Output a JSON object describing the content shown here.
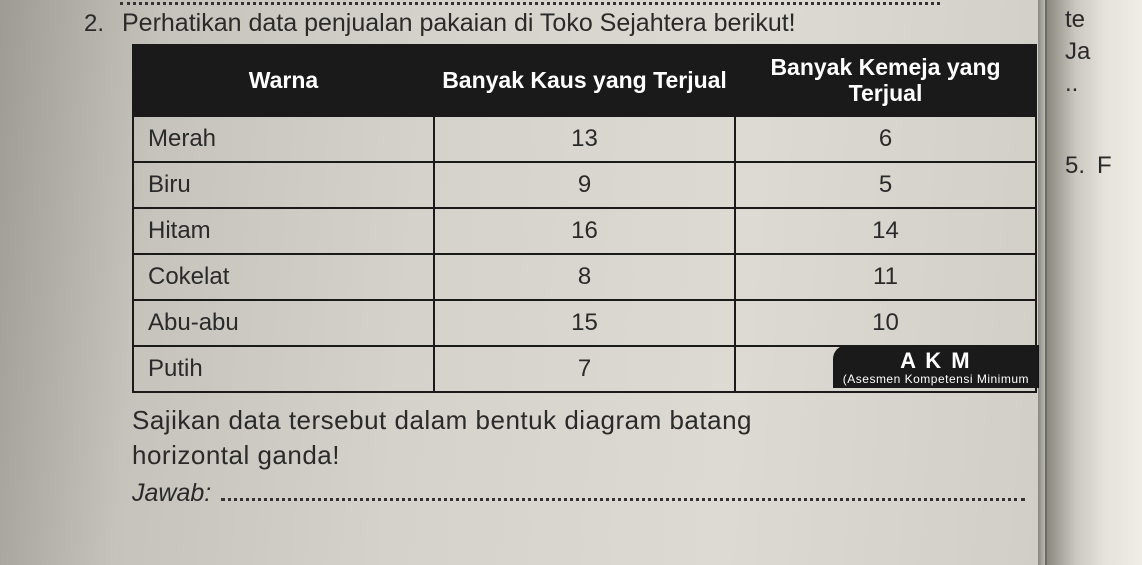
{
  "question": {
    "number": "2.",
    "prompt": "Perhatikan data penjualan pakaian di Toko Sejahtera berikut!",
    "instruction_line1": "Sajikan data tersebut dalam bentuk diagram batang",
    "instruction_line2": "horizontal ganda!",
    "answer_label": "Jawab:"
  },
  "table": {
    "type": "table",
    "columns": [
      "Warna",
      "Banyak Kaus yang Terjual",
      "Banyak Kemeja yang Terjual"
    ],
    "rows": [
      {
        "label": "Merah",
        "kaus": "13",
        "kemeja": "6"
      },
      {
        "label": "Biru",
        "kaus": "9",
        "kemeja": "5"
      },
      {
        "label": "Hitam",
        "kaus": "16",
        "kemeja": "14"
      },
      {
        "label": "Cokelat",
        "kaus": "8",
        "kemeja": "11"
      },
      {
        "label": "Abu-abu",
        "kaus": "15",
        "kemeja": "10"
      },
      {
        "label": "Putih",
        "kaus": "7",
        "kemeja": ""
      }
    ],
    "header_bg": "#1a1a1a",
    "header_color": "#ffffff",
    "border_color": "#1a1a1a",
    "header_fontsize": 23,
    "cell_fontsize": 24
  },
  "akm": {
    "title": "A K M",
    "subtitle": "(Asesmen Kompetensi Minimum"
  },
  "right_page": {
    "frag1": "te",
    "frag2": "Ja",
    "frag3": "..",
    "q5num": "5.",
    "q5frag": "F"
  },
  "colors": {
    "page_bg": "#d4d2ca",
    "text": "#2a2a2a"
  }
}
